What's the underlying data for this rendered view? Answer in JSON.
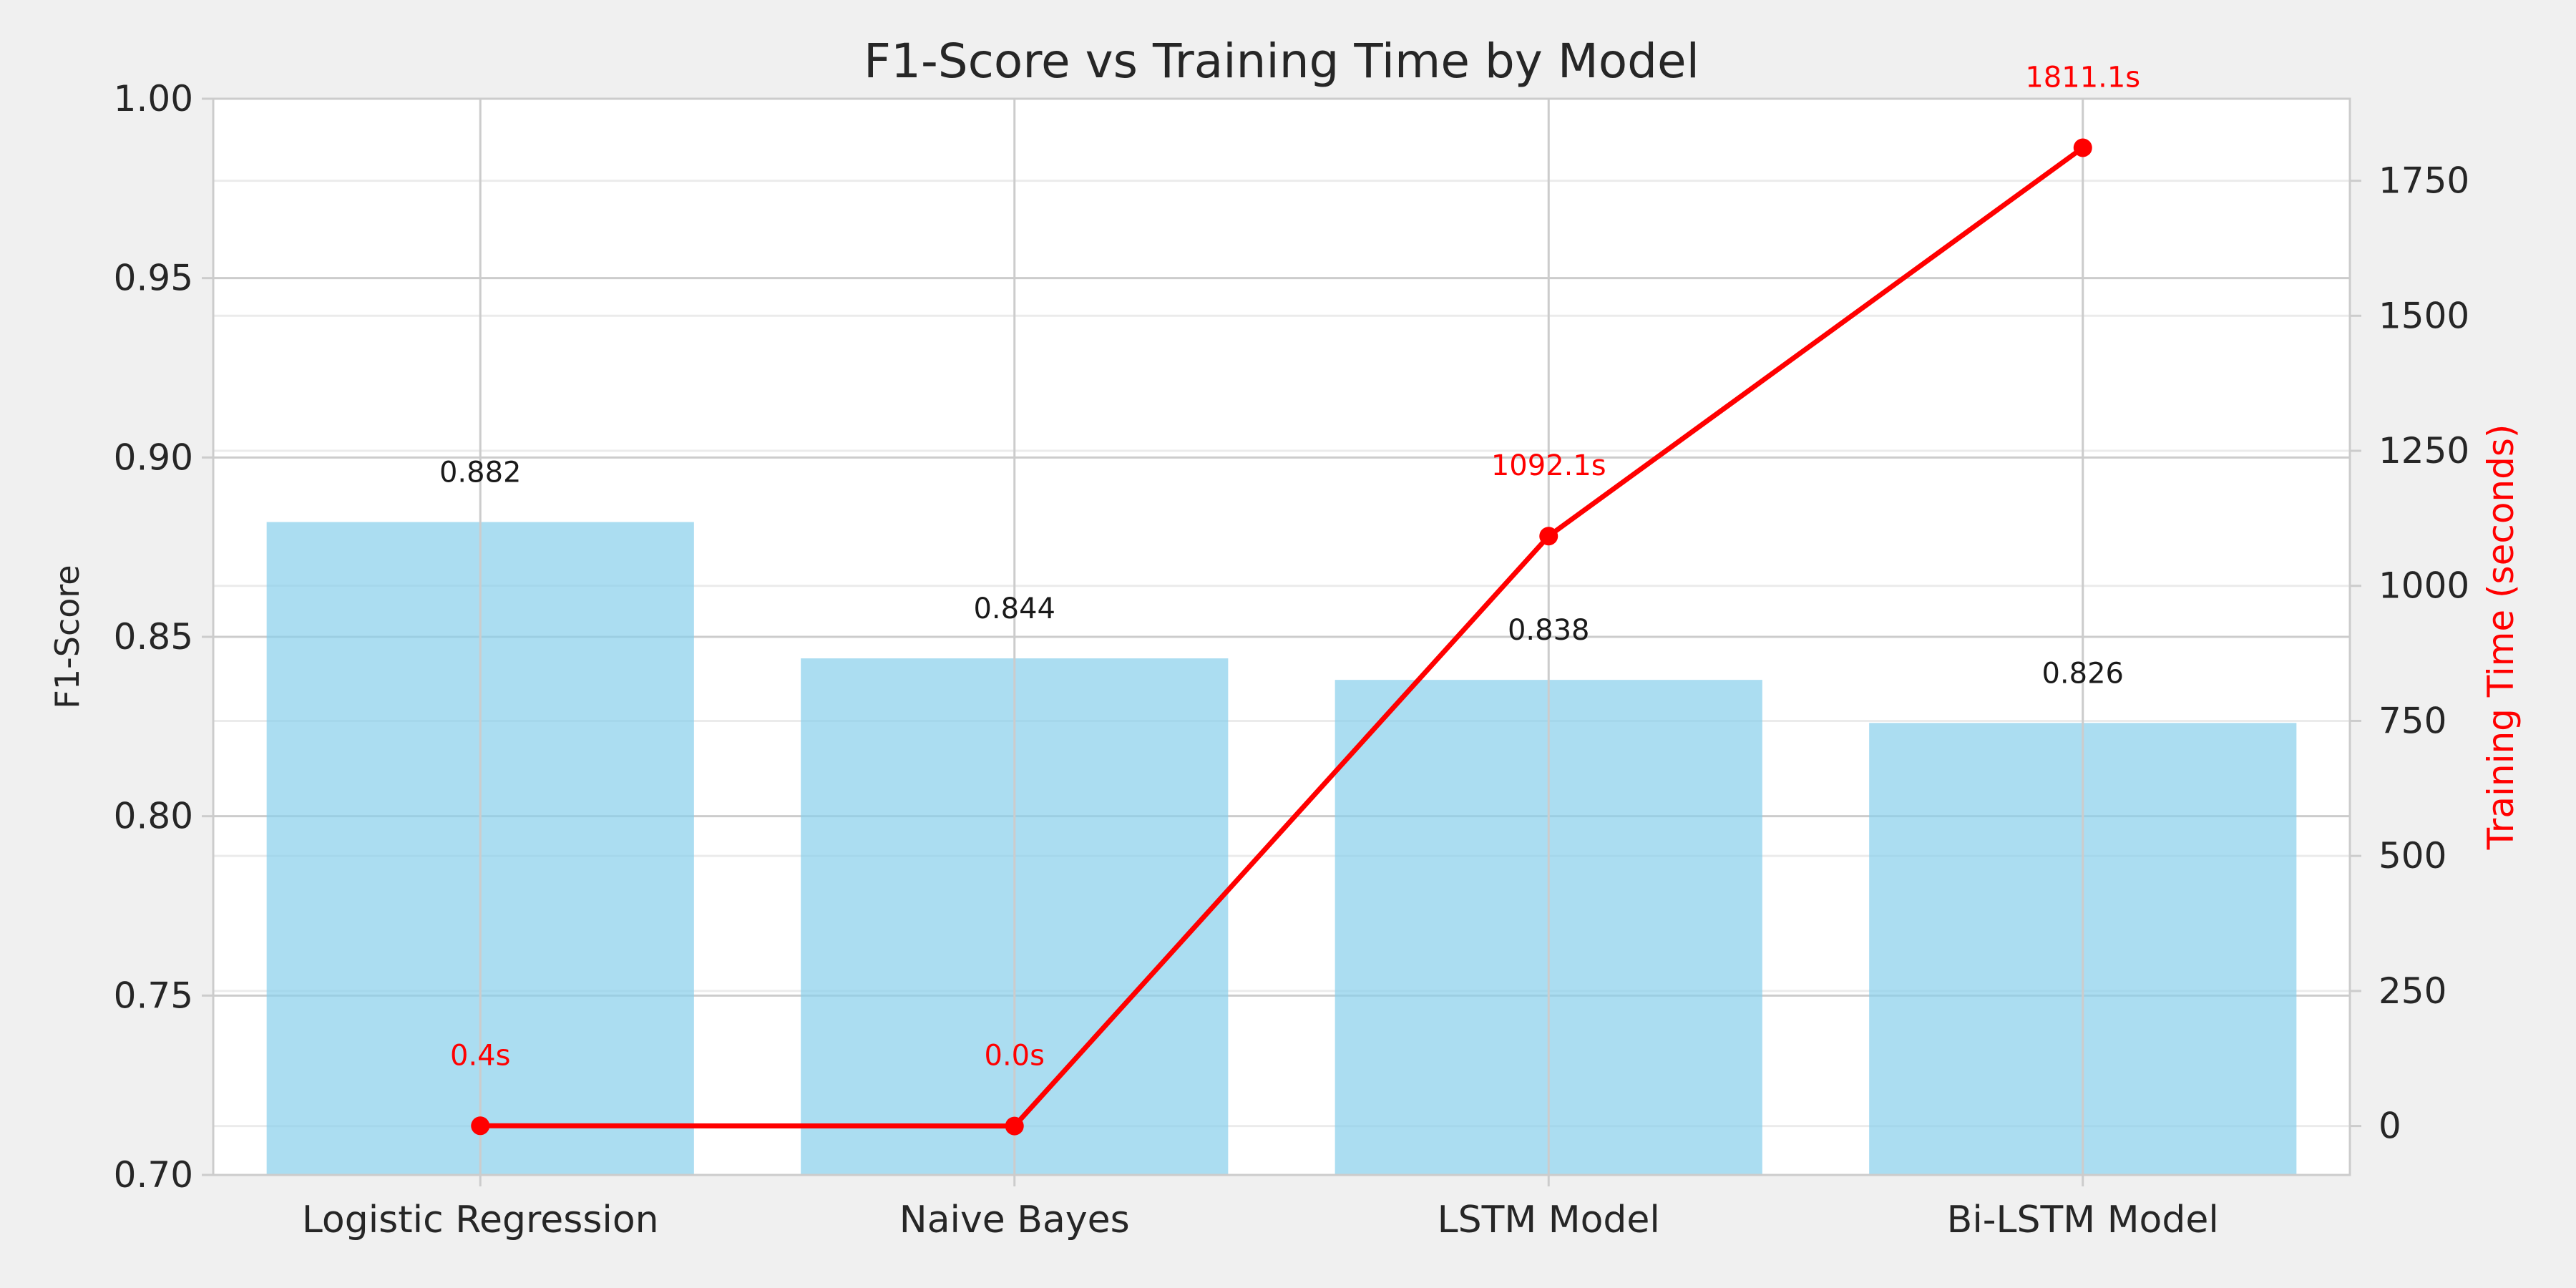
{
  "chart_data": {
    "type": "bar",
    "title": "F1-Score vs Training Time by Model",
    "xlabel": "",
    "ylabel": "F1-Score",
    "ylabel_right": "Training Time (seconds)",
    "categories": [
      "Logistic Regression",
      "Naive Bayes",
      "LSTM Model",
      "Bi-LSTM Model"
    ],
    "series": [
      {
        "type": "bar",
        "axis": "left",
        "values": [
          0.882,
          0.844,
          0.838,
          0.826
        ],
        "labels": [
          "0.882",
          "0.844",
          "0.838",
          "0.826"
        ],
        "color": "#87ceeb"
      },
      {
        "type": "line",
        "axis": "right",
        "values": [
          0.4,
          0.0,
          1092.1,
          1811.1
        ],
        "labels": [
          "0.4s",
          "0.0s",
          "1092.1s",
          "1811.1s"
        ],
        "color": "#ff0000"
      }
    ],
    "ylim": [
      0.7,
      1.0
    ],
    "yticks": [
      "0.70",
      "0.75",
      "0.80",
      "0.85",
      "0.90",
      "0.95",
      "1.00"
    ],
    "ylim_right": [
      -90.6,
      1901.8
    ],
    "yticks_right": [
      "0",
      "250",
      "500",
      "750",
      "1000",
      "1250",
      "1500",
      "1750"
    ],
    "grid": true,
    "colors": {
      "background": "#f0f0f0",
      "plot_background": "#ffffff",
      "bar": "#87ceeb",
      "line": "#ff0000",
      "grid": "#cccccc",
      "text": "#262626"
    }
  }
}
